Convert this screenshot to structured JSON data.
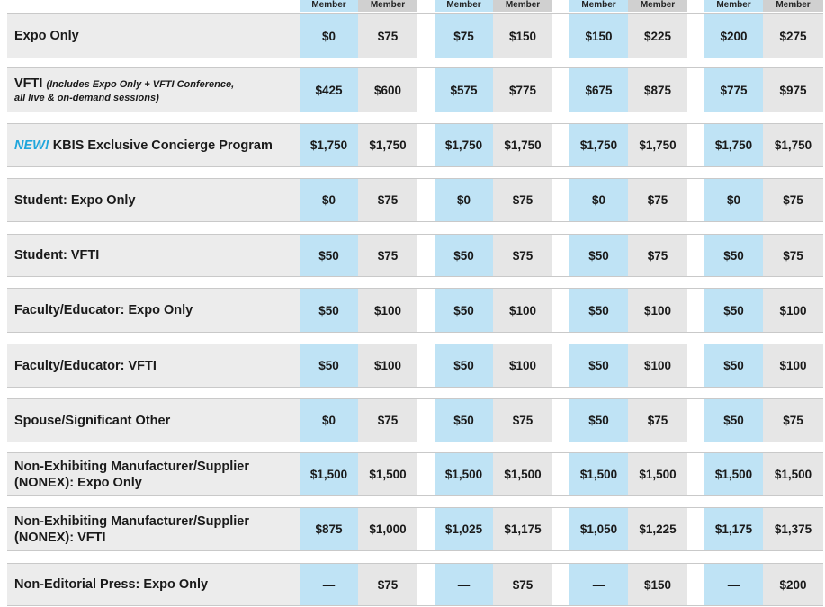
{
  "header": {
    "labels": [
      "Member",
      "Member",
      "Member",
      "Member",
      "Member",
      "Member",
      "Member",
      "Member"
    ]
  },
  "rows": [
    {
      "label": "Expo Only",
      "values": [
        "$0",
        "$75",
        "$75",
        "$150",
        "$150",
        "$225",
        "$200",
        "$275"
      ]
    },
    {
      "label": "VFTI",
      "note_line1": "(Includes Expo Only + VFTI Conference,",
      "note_line2": "all live & on-demand sessions)",
      "values": [
        "$425",
        "$600",
        "$575",
        "$775",
        "$675",
        "$875",
        "$775",
        "$975"
      ]
    },
    {
      "new_tag": "NEW!",
      "label": "KBIS Exclusive Concierge Program",
      "values": [
        "$1,750",
        "$1,750",
        "$1,750",
        "$1,750",
        "$1,750",
        "$1,750",
        "$1,750",
        "$1,750"
      ]
    },
    {
      "label": "Student: Expo Only",
      "values": [
        "$0",
        "$75",
        "$0",
        "$75",
        "$0",
        "$75",
        "$0",
        "$75"
      ]
    },
    {
      "label": "Student: VFTI",
      "values": [
        "$50",
        "$75",
        "$50",
        "$75",
        "$50",
        "$75",
        "$50",
        "$75"
      ]
    },
    {
      "label": "Faculty/Educator: Expo Only",
      "values": [
        "$50",
        "$100",
        "$50",
        "$100",
        "$50",
        "$100",
        "$50",
        "$100"
      ]
    },
    {
      "label": "Faculty/Educator: VFTI",
      "values": [
        "$50",
        "$100",
        "$50",
        "$100",
        "$50",
        "$100",
        "$50",
        "$100"
      ]
    },
    {
      "label": "Spouse/Significant Other",
      "values": [
        "$0",
        "$75",
        "$50",
        "$75",
        "$50",
        "$75",
        "$50",
        "$75"
      ]
    },
    {
      "label": "Non-Exhibiting Manufacturer/Supplier",
      "label_line2": "(NONEX): Expo Only",
      "values": [
        "$1,500",
        "$1,500",
        "$1,500",
        "$1,500",
        "$1,500",
        "$1,500",
        "$1,500",
        "$1,500"
      ]
    },
    {
      "label": "Non-Exhibiting Manufacturer/Supplier",
      "label_line2": "(NONEX): VFTI",
      "values": [
        "$875",
        "$1,000",
        "$1,025",
        "$1,175",
        "$1,050",
        "$1,225",
        "$1,175",
        "$1,375"
      ]
    },
    {
      "label": "Non-Editorial Press: Expo Only",
      "values": [
        "—",
        "$75",
        "—",
        "$75",
        "—",
        "$150",
        "—",
        "$200"
      ]
    }
  ]
}
